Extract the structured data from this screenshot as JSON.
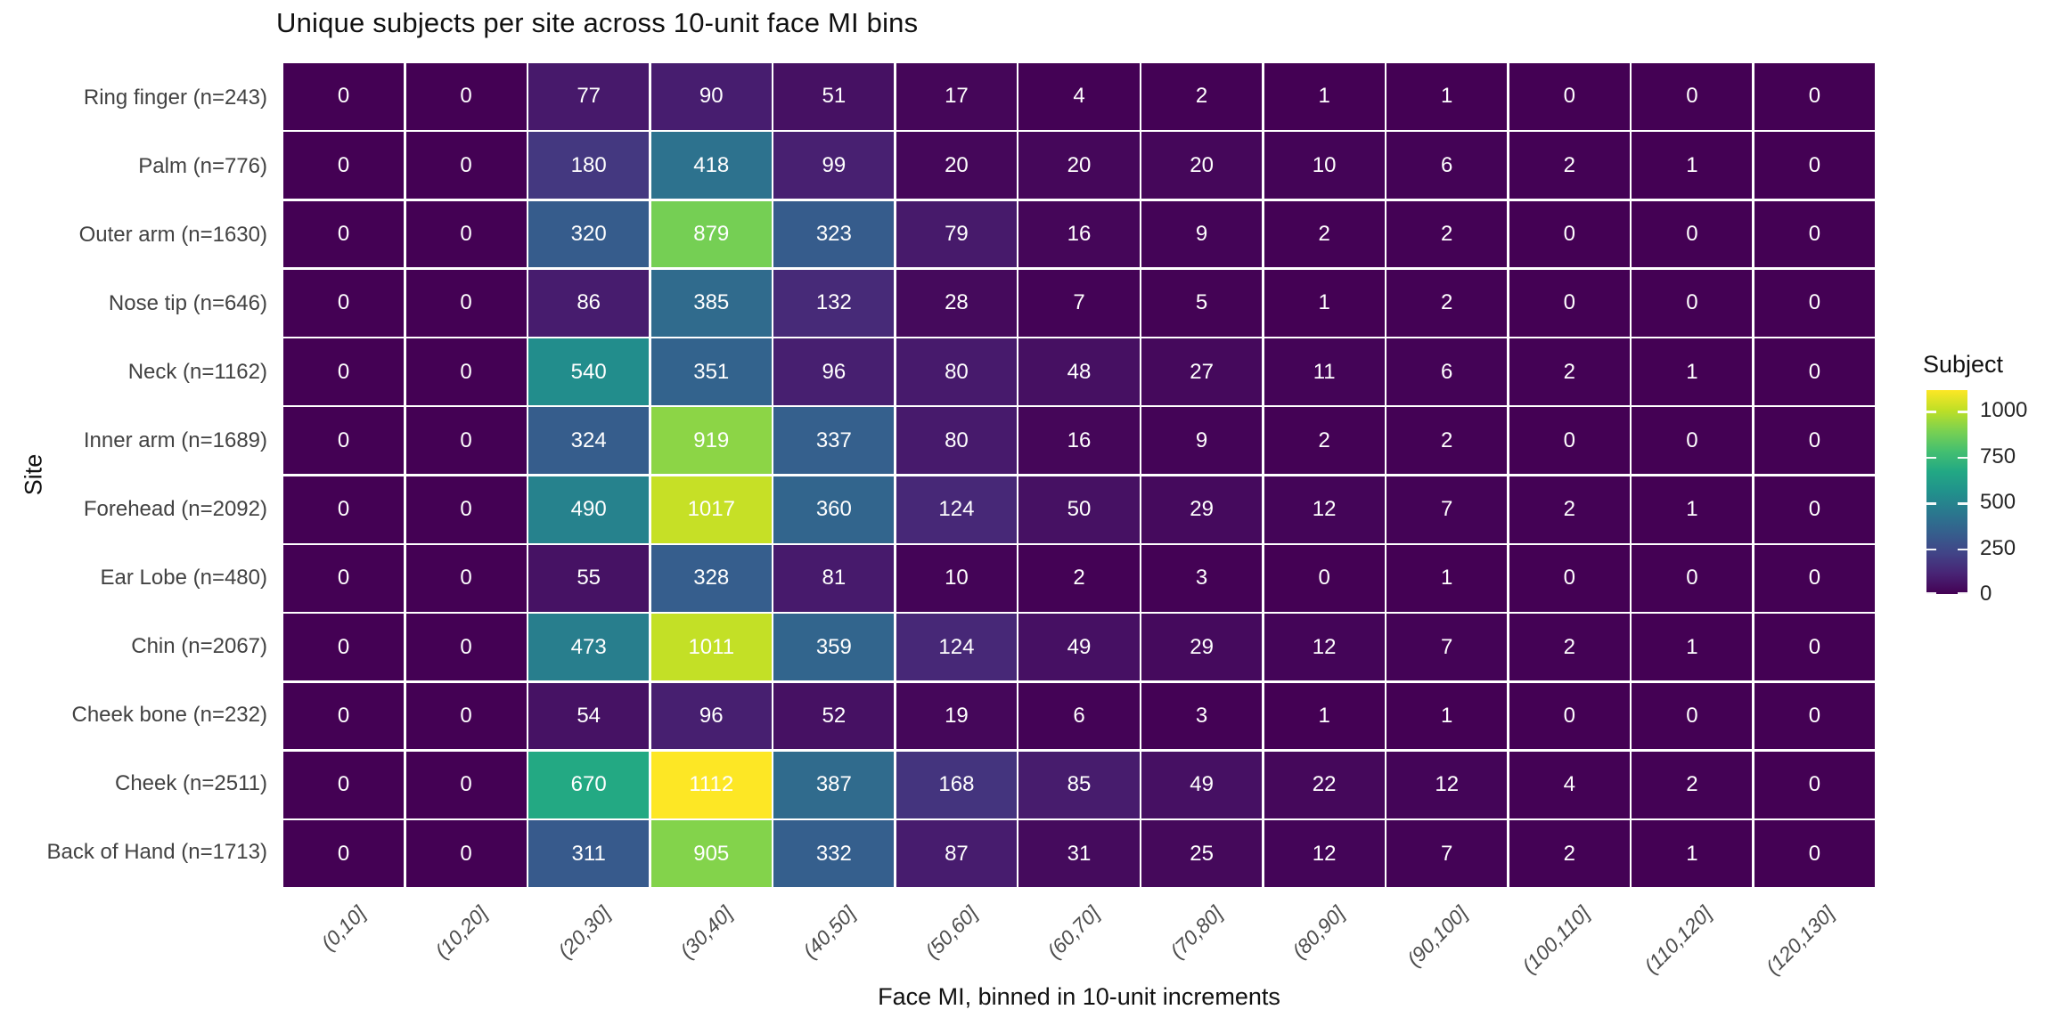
{
  "chart_data": {
    "type": "heatmap",
    "title": "Unique subjects per site across 10-unit face MI bins",
    "xlabel": "Face MI, binned in 10-unit increments",
    "ylabel": "Site",
    "x_categories": [
      "(0,10]",
      "(10,20]",
      "(20,30]",
      "(30,40]",
      "(40,50]",
      "(50,60]",
      "(60,70]",
      "(70,80]",
      "(80,90]",
      "(90,100]",
      "(100,110]",
      "(110,120]",
      "(120,130]"
    ],
    "y_categories": [
      "Ring finger (n=243)",
      "Palm (n=776)",
      "Outer arm (n=1630)",
      "Nose tip (n=646)",
      "Neck (n=1162)",
      "Inner arm (n=1689)",
      "Forehead (n=2092)",
      "Ear Lobe (n=480)",
      "Chin (n=2067)",
      "Cheek bone (n=232)",
      "Cheek (n=2511)",
      "Back of Hand (n=1713)"
    ],
    "values": [
      [
        0,
        0,
        77,
        90,
        51,
        17,
        4,
        2,
        1,
        1,
        0,
        0,
        0
      ],
      [
        0,
        0,
        180,
        418,
        99,
        20,
        20,
        20,
        10,
        6,
        2,
        1,
        0
      ],
      [
        0,
        0,
        320,
        879,
        323,
        79,
        16,
        9,
        2,
        2,
        0,
        0,
        0
      ],
      [
        0,
        0,
        86,
        385,
        132,
        28,
        7,
        5,
        1,
        2,
        0,
        0,
        0
      ],
      [
        0,
        0,
        540,
        351,
        96,
        80,
        48,
        27,
        11,
        6,
        2,
        1,
        0
      ],
      [
        0,
        0,
        324,
        919,
        337,
        80,
        16,
        9,
        2,
        2,
        0,
        0,
        0
      ],
      [
        0,
        0,
        490,
        1017,
        360,
        124,
        50,
        29,
        12,
        7,
        2,
        1,
        0
      ],
      [
        0,
        0,
        55,
        328,
        81,
        10,
        2,
        3,
        0,
        1,
        0,
        0,
        0
      ],
      [
        0,
        0,
        473,
        1011,
        359,
        124,
        49,
        29,
        12,
        7,
        2,
        1,
        0
      ],
      [
        0,
        0,
        54,
        96,
        52,
        19,
        6,
        3,
        1,
        1,
        0,
        0,
        0
      ],
      [
        0,
        0,
        670,
        1112,
        387,
        168,
        85,
        49,
        22,
        12,
        4,
        2,
        0
      ],
      [
        0,
        0,
        311,
        905,
        332,
        87,
        31,
        25,
        12,
        7,
        2,
        1,
        0
      ]
    ],
    "value_range": [
      0,
      1112
    ],
    "legend": {
      "title": "Subject",
      "ticks": [
        0,
        250,
        500,
        750,
        1000
      ],
      "position": "right"
    },
    "colormap": {
      "name": "viridis",
      "stops": [
        "#440154",
        "#482475",
        "#414487",
        "#355f8d",
        "#2a788e",
        "#21918c",
        "#22a884",
        "#44bf70",
        "#7ad151",
        "#bddf26",
        "#fde725"
      ]
    },
    "style": {
      "cell_text_color": "#ffffff",
      "grid_line_color": "#ffffff",
      "x_tick_color": "#4d4d4d",
      "y_tick_color": "#424242",
      "title_color": "#111111"
    },
    "grid": "white borders between tiles",
    "legend_gradient_direction": "bottom(0) to top(max)"
  }
}
